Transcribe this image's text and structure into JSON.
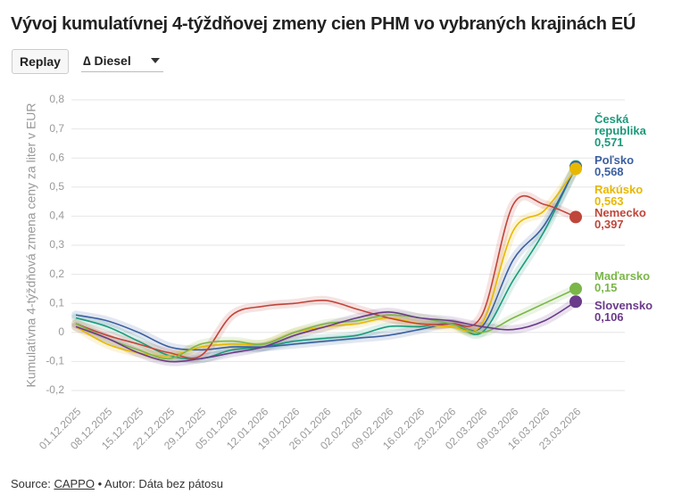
{
  "title": "Vývoj kumulatívnej 4-týždňovej zmeny cien PHM vo vybraných krajinách EÚ",
  "controls": {
    "replay": "Replay",
    "dropdown": "∆ Diesel"
  },
  "source": {
    "prefix": "Source:",
    "link": "CAPPO",
    "suffix": "• Autor: Dáta bez pátosu"
  },
  "chart_data": {
    "type": "line",
    "y_label": "Kumulatívna 4-týždňová zmena ceny za liter v EUR",
    "categories": [
      "01.12.2025",
      "08.12.2025",
      "15.12.2025",
      "22.12.2025",
      "29.12.2025",
      "05.01.2026",
      "12.01.2026",
      "19.01.2026",
      "26.01.2026",
      "02.02.2026",
      "09.02.2026",
      "16.02.2026",
      "23.02.2026",
      "02.03.2026",
      "09.03.2026",
      "16.03.2026",
      "23.03.2026"
    ],
    "ylim": [
      -0.2,
      0.8
    ],
    "yticks": [
      {
        "value": -0.2,
        "label": "-0,2"
      },
      {
        "value": -0.1,
        "label": "-0,1"
      },
      0,
      {
        "value": 0.1,
        "label": "0,1"
      },
      {
        "value": 0.2,
        "label": "0,2"
      },
      {
        "value": 0.3,
        "label": "0,3"
      },
      {
        "value": 0.4,
        "label": "0,4"
      },
      {
        "value": 0.5,
        "label": "0,5"
      },
      {
        "value": 0.6,
        "label": "0,6"
      },
      {
        "value": 0.7,
        "label": "0,7"
      },
      {
        "value": 0.8,
        "label": "0,8"
      }
    ],
    "grid": true,
    "series": [
      {
        "name": "Česká republika",
        "color": "#1a9a7a",
        "values": [
          0.05,
          0.02,
          -0.03,
          -0.08,
          -0.09,
          -0.06,
          -0.05,
          -0.03,
          -0.02,
          -0.01,
          0.02,
          0.02,
          0.03,
          0.0,
          0.18,
          0.35,
          0.571
        ],
        "value_labels": [
          null,
          null,
          null,
          null,
          null,
          null,
          null,
          null,
          null,
          null,
          null,
          null,
          null,
          null,
          null,
          null,
          "0,571"
        ]
      },
      {
        "name": "Poľsko",
        "color": "#3a5fa0",
        "values": [
          0.06,
          0.04,
          0.0,
          -0.05,
          -0.06,
          -0.05,
          -0.05,
          -0.04,
          -0.03,
          -0.02,
          -0.01,
          0.01,
          0.03,
          0.02,
          0.25,
          0.37,
          0.568
        ],
        "value_labels": [
          null,
          null,
          null,
          null,
          null,
          null,
          null,
          null,
          null,
          null,
          null,
          null,
          null,
          null,
          null,
          null,
          "0,568"
        ]
      },
      {
        "name": "Rakúsko",
        "color": "#e8b800",
        "values": [
          0.02,
          -0.04,
          -0.07,
          -0.08,
          -0.05,
          -0.04,
          -0.04,
          0.0,
          0.02,
          0.03,
          0.05,
          0.03,
          0.02,
          0.03,
          0.35,
          0.42,
          0.563
        ],
        "value_labels": [
          null,
          null,
          null,
          null,
          null,
          null,
          null,
          null,
          null,
          null,
          null,
          null,
          null,
          null,
          null,
          null,
          "0,563"
        ]
      },
      {
        "name": "Nemecko",
        "color": "#c0453a",
        "values": [
          0.03,
          -0.01,
          -0.04,
          -0.07,
          -0.08,
          0.06,
          0.09,
          0.1,
          0.11,
          0.08,
          0.05,
          0.03,
          0.03,
          0.06,
          0.44,
          0.44,
          0.397
        ],
        "value_labels": [
          null,
          null,
          null,
          null,
          null,
          null,
          null,
          null,
          null,
          null,
          null,
          null,
          null,
          null,
          null,
          null,
          "0,397"
        ]
      },
      {
        "name": "Maďarsko",
        "color": "#7ab648",
        "values": [
          0.03,
          -0.02,
          -0.06,
          -0.09,
          -0.04,
          -0.03,
          -0.04,
          0.0,
          0.03,
          0.04,
          0.06,
          0.05,
          0.03,
          0.0,
          0.05,
          0.1,
          0.15
        ],
        "value_labels": [
          null,
          null,
          null,
          null,
          null,
          null,
          null,
          null,
          null,
          null,
          null,
          null,
          null,
          null,
          null,
          null,
          "0,15"
        ]
      },
      {
        "name": "Slovensko",
        "color": "#6b3a8a",
        "values": [
          0.02,
          -0.02,
          -0.07,
          -0.1,
          -0.09,
          -0.07,
          -0.05,
          -0.01,
          0.02,
          0.05,
          0.07,
          0.05,
          0.04,
          0.02,
          0.01,
          0.04,
          0.106
        ],
        "value_labels": [
          null,
          null,
          null,
          null,
          null,
          null,
          null,
          null,
          null,
          null,
          null,
          null,
          null,
          null,
          null,
          null,
          "0,106"
        ]
      }
    ]
  }
}
